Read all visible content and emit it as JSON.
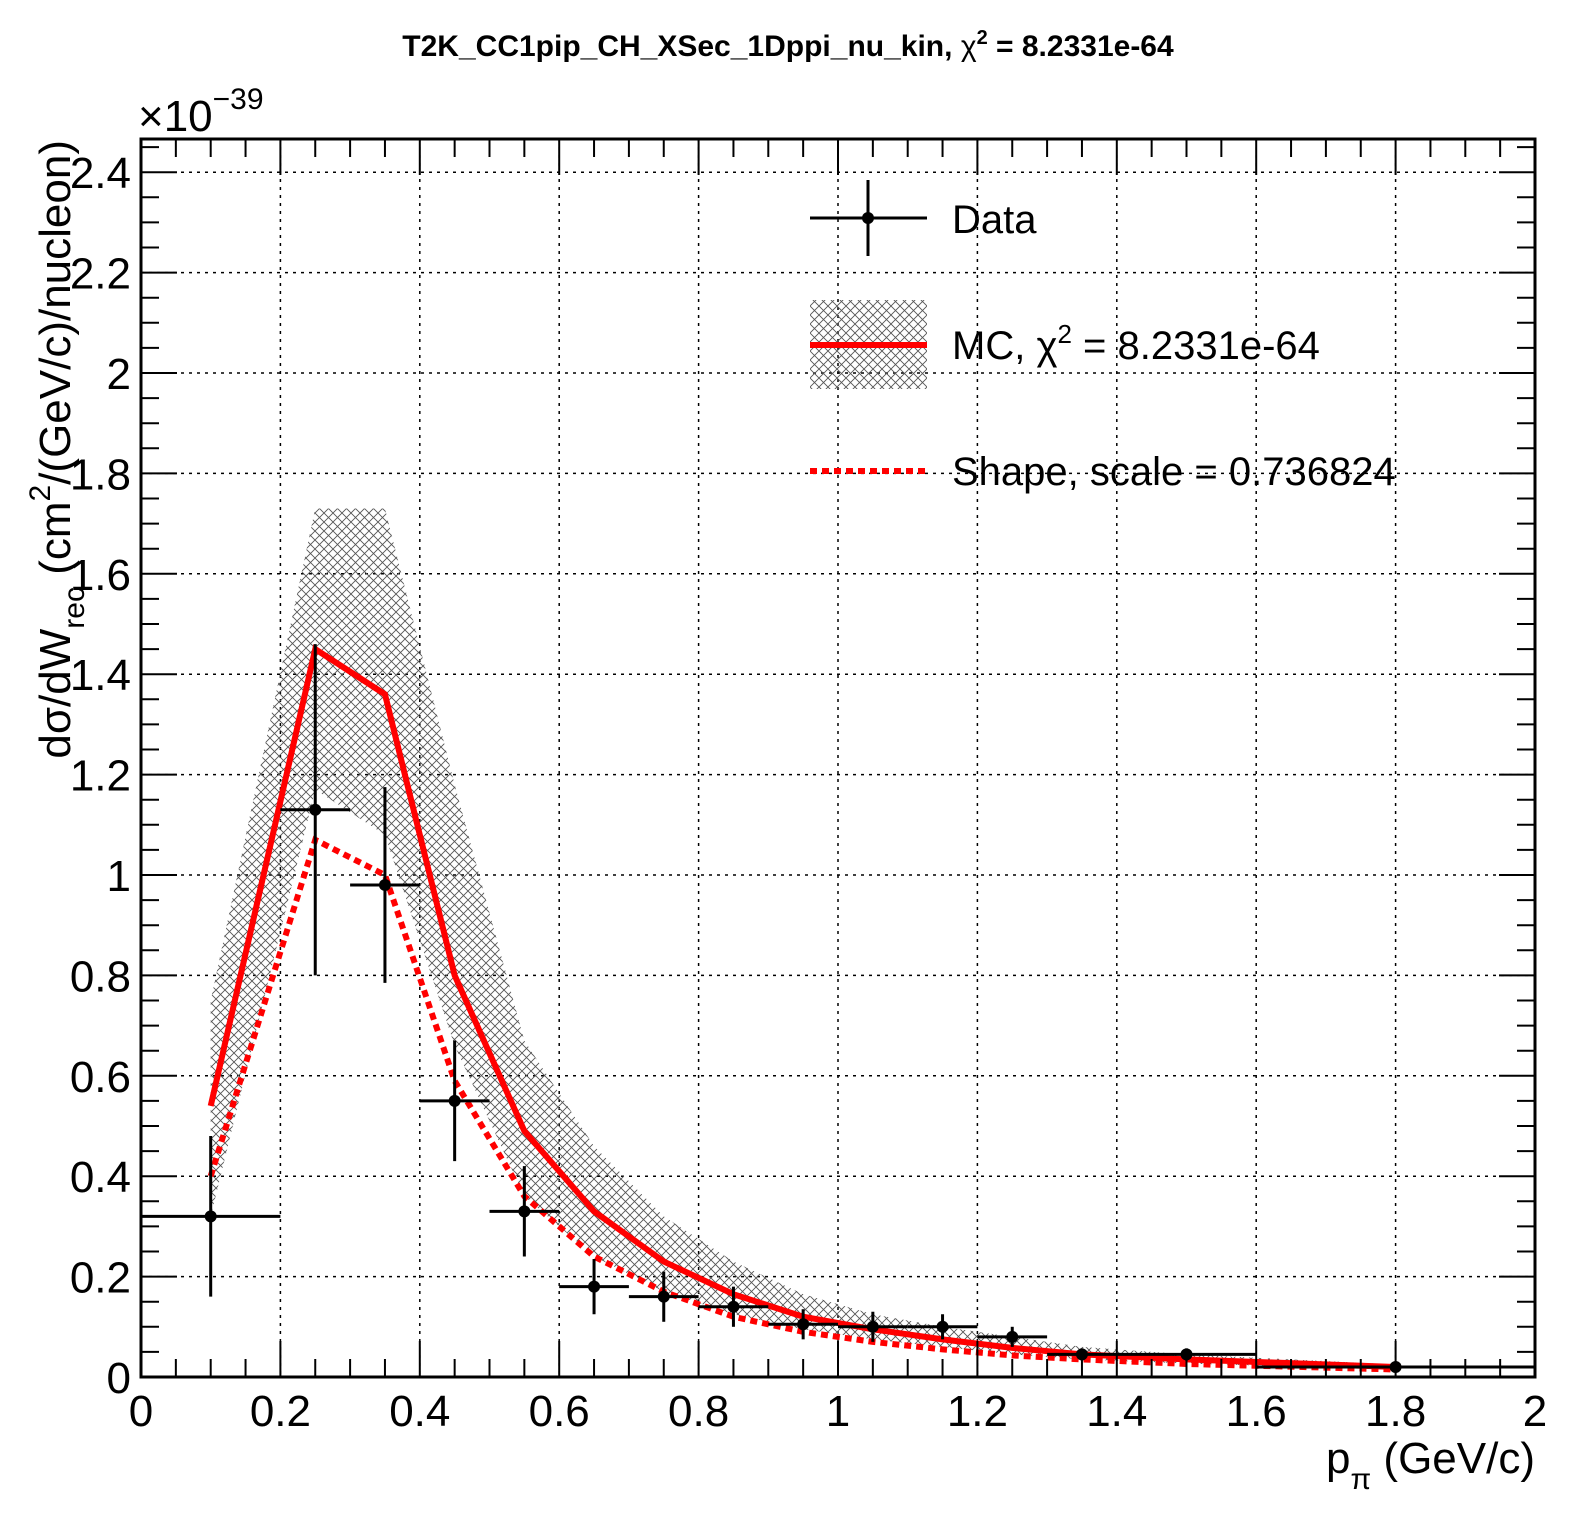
{
  "chart_data": {
    "type": "line",
    "title": {
      "prefix": "T2K_CC1pip_CH_XSec_1Dppi_nu_kin, ",
      "chi": "χ",
      "sup": "2",
      "suffix": " = 8.2331e-64"
    },
    "xlabel": {
      "main": "p",
      "sub": "π",
      "unit": " (GeV/c)"
    },
    "ylabel": {
      "lead": "dσ/dW",
      "sub": "rec",
      "mid": " (cm",
      "sup": "2",
      "tail": "/(GeV/c)/nucleon)"
    },
    "y_exponent": {
      "base": "×10",
      "power": "−39"
    },
    "xlim": [
      0,
      2
    ],
    "ylim": [
      0,
      2.45
    ],
    "x_ticks": [
      0,
      0.2,
      0.4,
      0.6,
      0.8,
      1,
      1.2,
      1.4,
      1.6,
      1.8,
      2
    ],
    "x_tick_labels": [
      "0",
      "0.2",
      "0.4",
      "0.6",
      "0.8",
      "1",
      "1.2",
      "1.4",
      "1.6",
      "1.8",
      "2"
    ],
    "y_ticks": [
      0,
      0.2,
      0.4,
      0.6,
      0.8,
      1,
      1.2,
      1.4,
      1.6,
      1.8,
      2,
      2.2,
      2.4
    ],
    "y_tick_labels": [
      "0",
      "0.2",
      "0.4",
      "0.6",
      "0.8",
      "1",
      "1.2",
      "1.4",
      "1.6",
      "1.8",
      "2",
      "2.2",
      "2.4"
    ],
    "grid": true,
    "legend_position": "top-right",
    "series": [
      {
        "name": "Data",
        "kind": "points",
        "color": "#000000",
        "x": [
          0.1,
          0.25,
          0.35,
          0.45,
          0.55,
          0.65,
          0.75,
          0.85,
          0.95,
          1.05,
          1.15,
          1.25,
          1.35,
          1.5,
          1.8
        ],
        "x_low": [
          0.0,
          0.2,
          0.3,
          0.4,
          0.5,
          0.6,
          0.7,
          0.8,
          0.9,
          1.0,
          1.1,
          1.2,
          1.3,
          1.4,
          1.6
        ],
        "x_high": [
          0.2,
          0.3,
          0.4,
          0.5,
          0.6,
          0.7,
          0.8,
          0.9,
          1.0,
          1.1,
          1.2,
          1.3,
          1.4,
          1.6,
          2.0
        ],
        "y": [
          0.32,
          1.13,
          0.98,
          0.55,
          0.33,
          0.18,
          0.16,
          0.14,
          0.105,
          0.1,
          0.1,
          0.08,
          0.045,
          0.045,
          0.02
        ],
        "y_err": [
          0.16,
          0.33,
          0.195,
          0.12,
          0.09,
          0.055,
          0.05,
          0.04,
          0.03,
          0.03,
          0.025,
          0.02,
          0.012,
          0.012,
          0.008
        ]
      },
      {
        "name": "MC, χ² = 8.2331e-64",
        "legend_parts": {
          "prefix": "MC, ",
          "chi": "χ",
          "sup": "2",
          "suffix": " = 8.2331e-64"
        },
        "kind": "line",
        "color": "#ff0000",
        "x": [
          0.1,
          0.25,
          0.35,
          0.45,
          0.55,
          0.65,
          0.75,
          0.85,
          0.95,
          1.05,
          1.15,
          1.25,
          1.35,
          1.5,
          1.8
        ],
        "y": [
          0.54,
          1.45,
          1.36,
          0.8,
          0.49,
          0.33,
          0.23,
          0.165,
          0.12,
          0.095,
          0.075,
          0.058,
          0.045,
          0.035,
          0.02
        ],
        "band_low": [
          0.32,
          1.17,
          1.08,
          0.66,
          0.36,
          0.24,
          0.17,
          0.125,
          0.095,
          0.075,
          0.06,
          0.045,
          0.035,
          0.027,
          0.015
        ],
        "band_high": [
          0.75,
          1.73,
          1.73,
          1.18,
          0.67,
          0.46,
          0.32,
          0.23,
          0.165,
          0.125,
          0.1,
          0.08,
          0.06,
          0.045,
          0.025
        ]
      },
      {
        "name": "Shape, scale = 0.736824",
        "kind": "dashed-line",
        "color": "#ff0000",
        "x": [
          0.1,
          0.25,
          0.35,
          0.45,
          0.55,
          0.65,
          0.75,
          0.85,
          0.95,
          1.05,
          1.15,
          1.25,
          1.35,
          1.5,
          1.8
        ],
        "y": [
          0.4,
          1.07,
          1.0,
          0.59,
          0.36,
          0.24,
          0.17,
          0.12,
          0.09,
          0.07,
          0.055,
          0.043,
          0.035,
          0.026,
          0.015
        ]
      }
    ],
    "legend": {
      "data_label": "Data",
      "shape_label": "Shape, scale = 0.736824"
    }
  }
}
